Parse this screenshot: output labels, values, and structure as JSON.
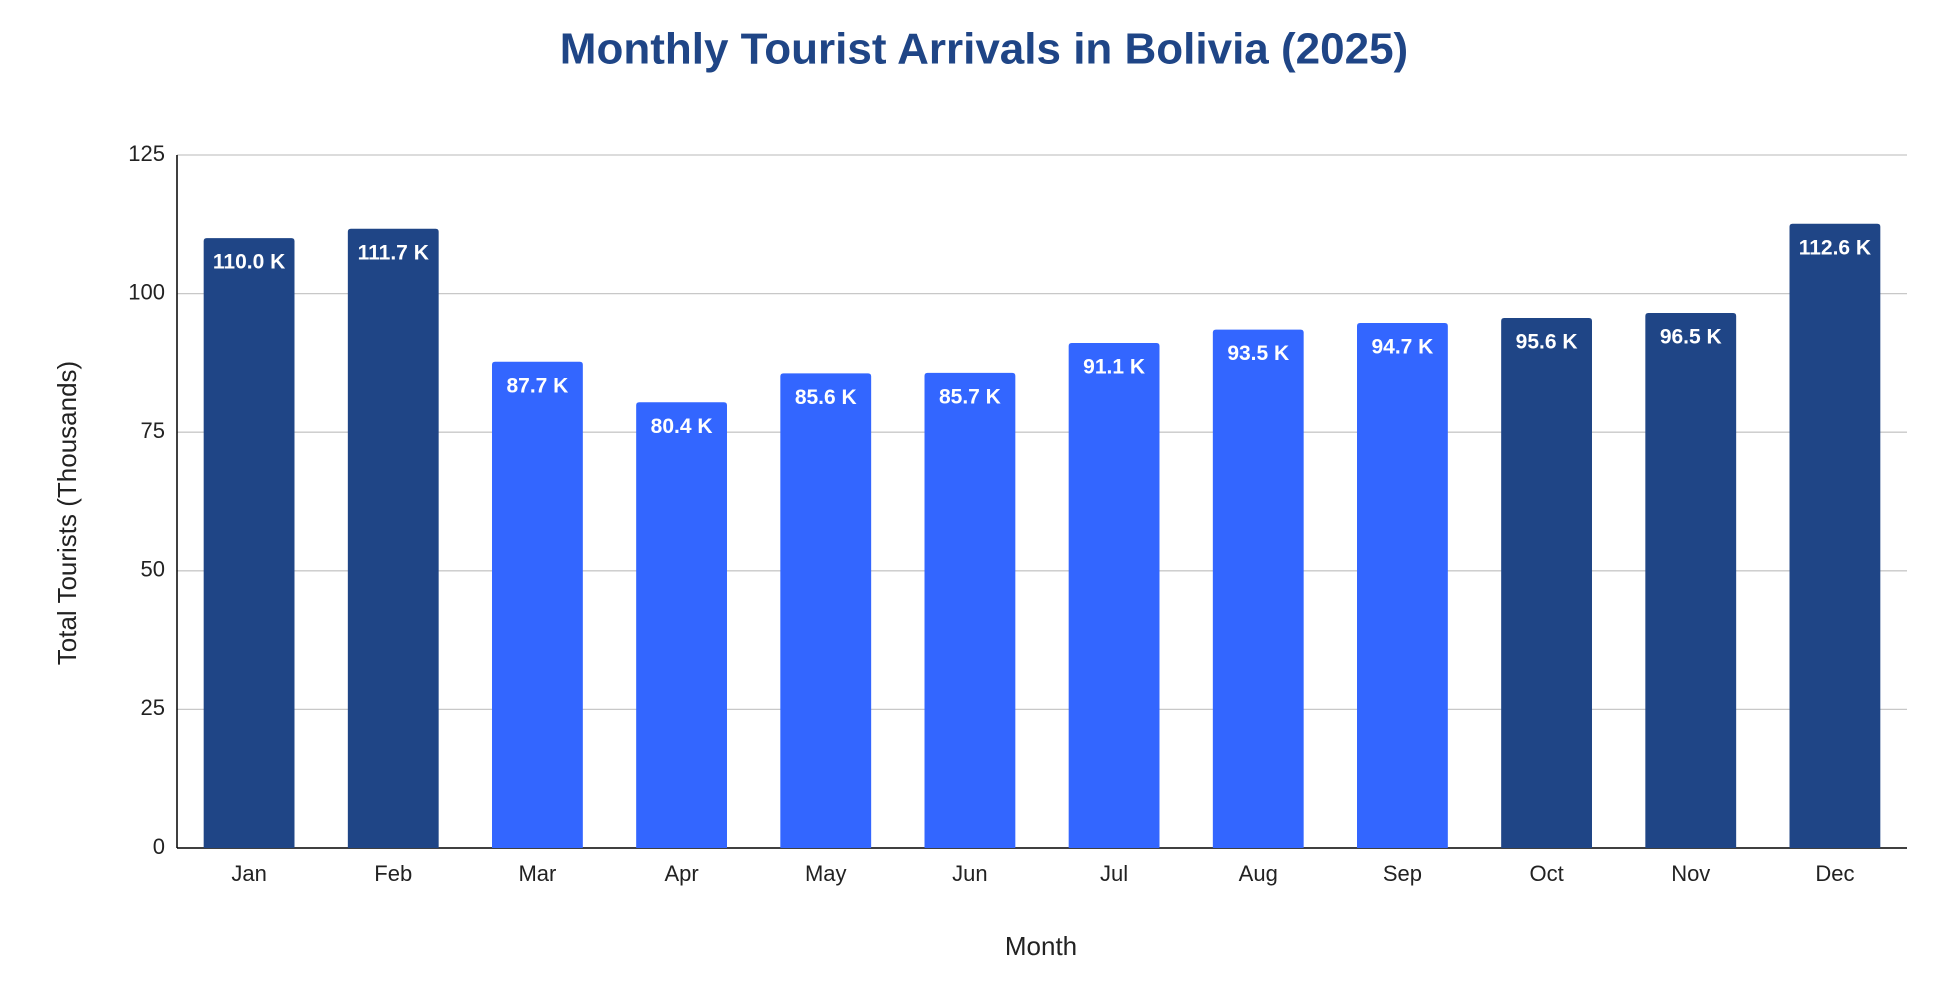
{
  "chart_data": {
    "type": "bar",
    "title": "Monthly Tourist Arrivals in Bolivia (2025)",
    "x_label": "Month",
    "y_label": "Total Tourists (Thousands)",
    "categories": [
      "Jan",
      "Feb",
      "Mar",
      "Apr",
      "May",
      "Jun",
      "Jul",
      "Aug",
      "Sep",
      "Oct",
      "Nov",
      "Dec"
    ],
    "values": [
      110.0,
      111.7,
      87.7,
      80.4,
      85.6,
      85.7,
      91.1,
      93.5,
      94.7,
      95.6,
      96.5,
      112.6
    ],
    "value_labels": [
      "110.0 K",
      "111.7 K",
      "87.7 K",
      "80.4 K",
      "85.6 K",
      "85.7 K",
      "91.1 K",
      "93.5 K",
      "94.7 K",
      "95.6 K",
      "96.5 K",
      "112.6 K"
    ],
    "colors": [
      "#1f4586",
      "#1f4586",
      "#3366ff",
      "#3366ff",
      "#3366ff",
      "#3366ff",
      "#3366ff",
      "#3366ff",
      "#3366ff",
      "#1f4586",
      "#1f4586",
      "#1f4586"
    ],
    "ylim": [
      0,
      125
    ],
    "yticks": [
      0,
      25,
      50,
      75,
      100,
      125
    ],
    "grid": true
  }
}
